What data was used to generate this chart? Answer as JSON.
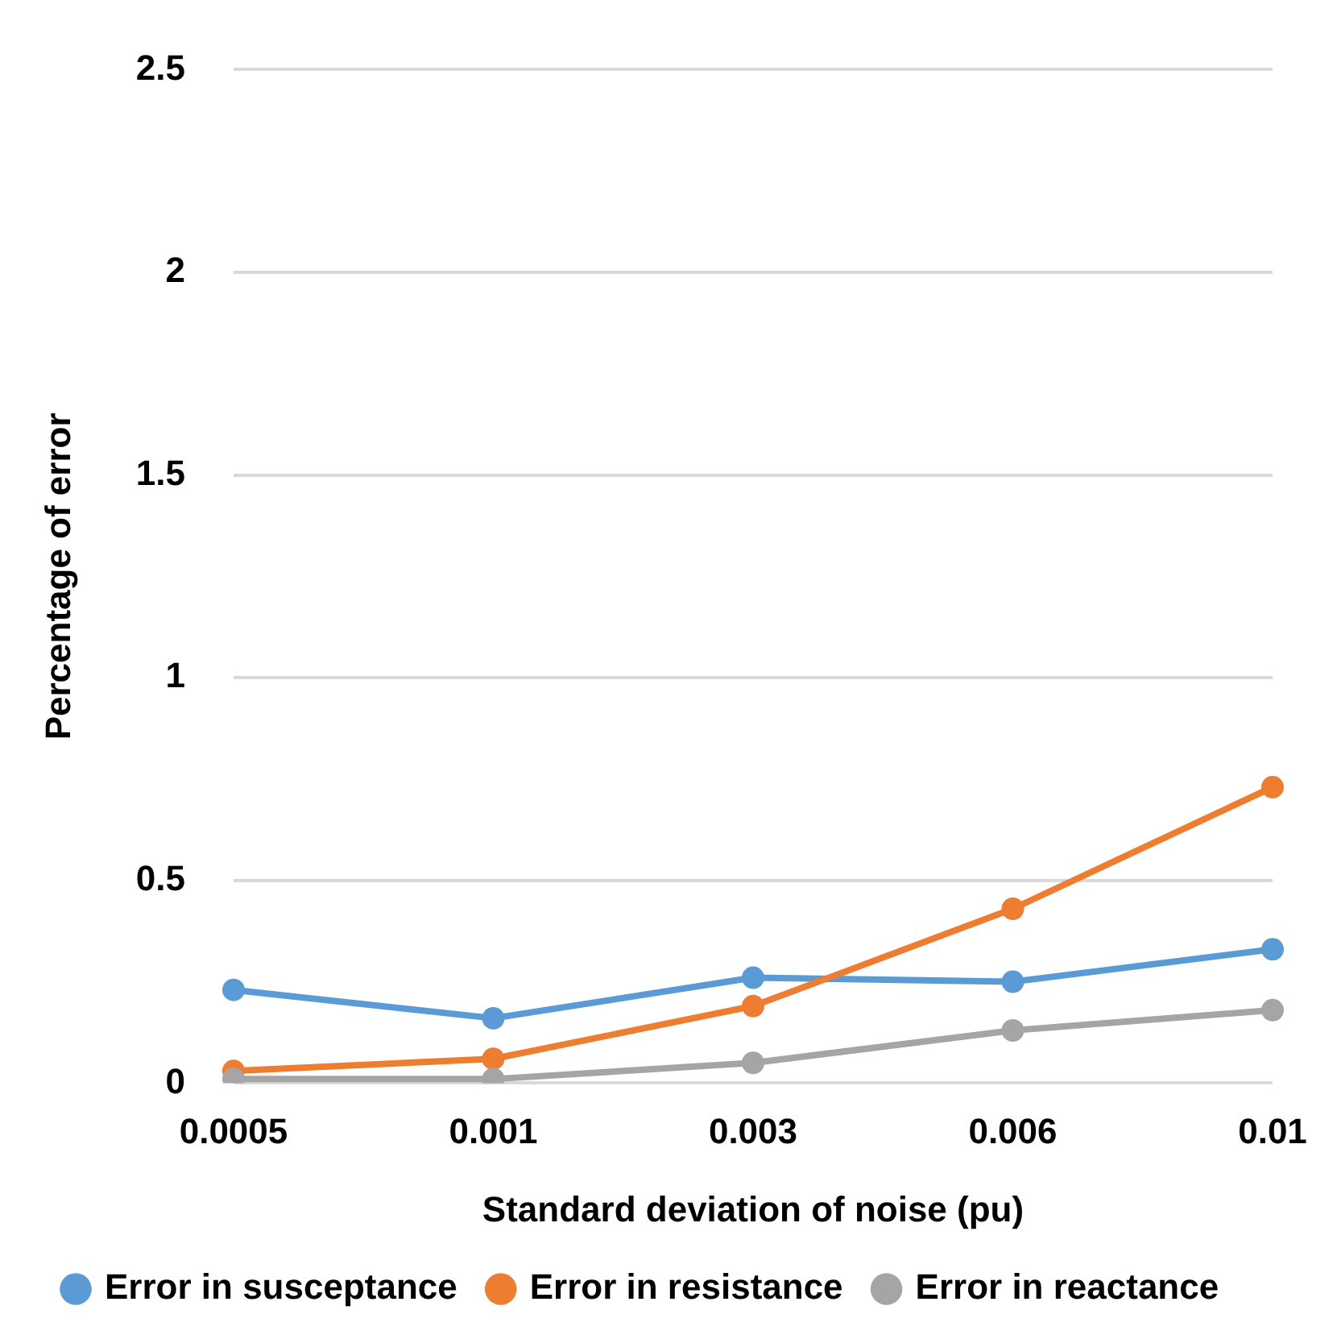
{
  "chart_data": {
    "type": "line",
    "xlabel": "Standard deviation of noise (pu)",
    "ylabel": "Percentage of error",
    "categories": [
      "0.0005",
      "0.001",
      "0.003",
      "0.006",
      "0.01"
    ],
    "series": [
      {
        "name": "Error in susceptance",
        "color": "#5b9bd5",
        "values": [
          0.23,
          0.16,
          0.26,
          0.25,
          0.33
        ]
      },
      {
        "name": "Error in resistance",
        "color": "#ed7d31",
        "values": [
          0.03,
          0.06,
          0.19,
          0.43,
          0.73
        ]
      },
      {
        "name": "Error in reactance",
        "color": "#a5a5a5",
        "values": [
          0.01,
          0.01,
          0.05,
          0.13,
          0.18
        ]
      }
    ],
    "ylim": [
      0,
      2.5
    ],
    "yticks": [
      0,
      0.5,
      1,
      1.5,
      2,
      2.5
    ],
    "grid": "y",
    "legend": "bottom",
    "marker": "circle",
    "line_style": "solid"
  }
}
